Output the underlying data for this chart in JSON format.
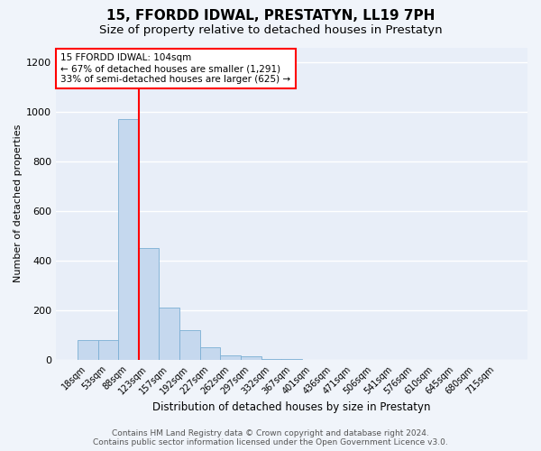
{
  "title": "15, FFORDD IDWAL, PRESTATYN, LL19 7PH",
  "subtitle": "Size of property relative to detached houses in Prestatyn",
  "xlabel": "Distribution of detached houses by size in Prestatyn",
  "ylabel": "Number of detached properties",
  "footer_line1": "Contains HM Land Registry data © Crown copyright and database right 2024.",
  "footer_line2": "Contains public sector information licensed under the Open Government Licence v3.0.",
  "categories": [
    "18sqm",
    "53sqm",
    "88sqm",
    "123sqm",
    "157sqm",
    "192sqm",
    "227sqm",
    "262sqm",
    "297sqm",
    "332sqm",
    "367sqm",
    "401sqm",
    "436sqm",
    "471sqm",
    "506sqm",
    "541sqm",
    "576sqm",
    "610sqm",
    "645sqm",
    "680sqm",
    "715sqm"
  ],
  "values": [
    80,
    80,
    970,
    450,
    210,
    120,
    50,
    20,
    15,
    5,
    5,
    0,
    0,
    0,
    0,
    0,
    0,
    0,
    0,
    0,
    0
  ],
  "bar_color": "#c5d8ee",
  "bar_edge_color": "#7bafd4",
  "red_line_x": 2.5,
  "annotation_line1": "15 FFORDD IDWAL: 104sqm",
  "annotation_line2": "← 67% of detached houses are smaller (1,291)",
  "annotation_line3": "33% of semi-detached houses are larger (625) →",
  "ylim": [
    0,
    1260
  ],
  "yticks": [
    0,
    200,
    400,
    600,
    800,
    1000,
    1200
  ],
  "background_color": "#e8eef8",
  "grid_color": "#ffffff",
  "title_fontsize": 11,
  "subtitle_fontsize": 9.5,
  "ylabel_fontsize": 8,
  "xlabel_fontsize": 8.5,
  "tick_fontsize": 7,
  "footer_fontsize": 6.5,
  "annotation_fontsize": 7.5
}
